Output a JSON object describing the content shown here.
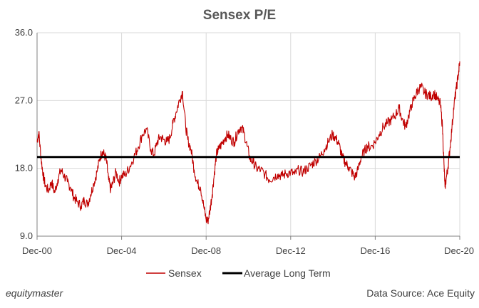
{
  "chart_data": {
    "type": "line",
    "title": "Sensex P/E",
    "xlabel": "",
    "ylabel": "",
    "x_range": [
      2000.917,
      2020.917
    ],
    "ylim": [
      9.0,
      36.0
    ],
    "y_ticks": [
      "9.0",
      "18.0",
      "27.0",
      "36.0"
    ],
    "y_tick_values": [
      9.0,
      18.0,
      27.0,
      36.0
    ],
    "x_ticks": [
      "Dec-00",
      "Dec-04",
      "Dec-08",
      "Dec-12",
      "Dec-16",
      "Dec-20"
    ],
    "x_tick_values": [
      2000.917,
      2004.917,
      2008.917,
      2012.917,
      2016.917,
      2020.917
    ],
    "grid": "vertical-and-horizontal",
    "legend_position": "bottom",
    "series": [
      {
        "name": "Sensex",
        "color": "#C00000",
        "x": [
          2000.917,
          2001.0,
          2001.1,
          2001.2,
          2001.3,
          2001.45,
          2001.6,
          2001.75,
          2001.9,
          2002.05,
          2002.2,
          2002.35,
          2002.5,
          2002.65,
          2002.8,
          2003.0,
          2003.15,
          2003.3,
          2003.45,
          2003.6,
          2003.75,
          2003.9,
          2004.0,
          2004.1,
          2004.2,
          2004.3,
          2004.4,
          2004.5,
          2004.65,
          2004.8,
          2004.917,
          2005.1,
          2005.3,
          2005.5,
          2005.7,
          2005.9,
          2006.1,
          2006.3,
          2006.45,
          2006.6,
          2006.75,
          2006.9,
          2007.05,
          2007.2,
          2007.35,
          2007.5,
          2007.65,
          2007.8,
          2007.95,
          2008.05,
          2008.2,
          2008.35,
          2008.5,
          2008.65,
          2008.8,
          2008.917,
          2009.0,
          2009.1,
          2009.2,
          2009.3,
          2009.4,
          2009.5,
          2009.65,
          2009.8,
          2009.95,
          2010.1,
          2010.25,
          2010.4,
          2010.55,
          2010.7,
          2010.85,
          2011.0,
          2011.15,
          2011.3,
          2011.5,
          2011.7,
          2011.9,
          2012.1,
          2012.3,
          2012.5,
          2012.7,
          2012.917,
          2013.1,
          2013.3,
          2013.5,
          2013.7,
          2013.9,
          2014.1,
          2014.3,
          2014.5,
          2014.7,
          2014.9,
          2015.05,
          2015.2,
          2015.35,
          2015.5,
          2015.65,
          2015.8,
          2015.95,
          2016.1,
          2016.25,
          2016.4,
          2016.55,
          2016.7,
          2016.917,
          2017.1,
          2017.3,
          2017.5,
          2017.7,
          2017.9,
          2018.05,
          2018.2,
          2018.35,
          2018.5,
          2018.65,
          2018.8,
          2018.95,
          2019.1,
          2019.25,
          2019.4,
          2019.55,
          2019.7,
          2019.85,
          2020.0,
          2020.1,
          2020.17,
          2020.22,
          2020.27,
          2020.35,
          2020.45,
          2020.55,
          2020.65,
          2020.75,
          2020.85,
          2020.917
        ],
        "values": [
          21.5,
          22.8,
          19.5,
          17.2,
          15.8,
          15.0,
          16.2,
          14.8,
          16.5,
          17.8,
          17.0,
          16.2,
          15.5,
          14.2,
          13.6,
          13.0,
          13.8,
          13.2,
          14.5,
          16.0,
          17.5,
          19.5,
          20.2,
          19.8,
          19.0,
          16.5,
          15.2,
          16.0,
          17.5,
          16.2,
          17.0,
          17.2,
          18.2,
          19.5,
          20.8,
          22.5,
          23.2,
          20.5,
          19.8,
          21.5,
          22.2,
          21.8,
          21.5,
          22.0,
          24.0,
          25.5,
          27.0,
          28.2,
          23.5,
          21.8,
          20.5,
          17.8,
          16.0,
          15.5,
          13.0,
          11.2,
          11.0,
          12.5,
          14.5,
          17.2,
          19.8,
          20.5,
          21.2,
          22.0,
          22.5,
          21.8,
          21.5,
          22.8,
          23.5,
          22.8,
          21.0,
          19.2,
          18.8,
          18.0,
          17.8,
          17.2,
          16.5,
          16.8,
          17.2,
          17.0,
          17.3,
          17.5,
          17.2,
          17.8,
          17.5,
          18.0,
          18.5,
          19.0,
          19.5,
          20.5,
          21.5,
          22.5,
          22.0,
          21.2,
          19.5,
          18.8,
          18.2,
          17.5,
          16.8,
          17.8,
          19.5,
          20.2,
          21.0,
          20.8,
          21.5,
          22.5,
          23.5,
          24.0,
          24.5,
          25.2,
          26.0,
          24.5,
          23.5,
          25.0,
          26.5,
          27.5,
          28.5,
          28.8,
          28.0,
          27.8,
          27.5,
          28.0,
          27.2,
          26.5,
          23.5,
          18.5,
          15.5,
          16.5,
          18.0,
          20.5,
          23.5,
          26.5,
          28.5,
          30.5,
          32.2
        ]
      },
      {
        "name": "Average Long Term",
        "color": "#000000",
        "x": [
          2000.917,
          2020.917
        ],
        "values": [
          19.5,
          19.5
        ]
      }
    ]
  },
  "footer": {
    "brand": "equitymaster",
    "source": "Data Source: Ace Equity"
  }
}
